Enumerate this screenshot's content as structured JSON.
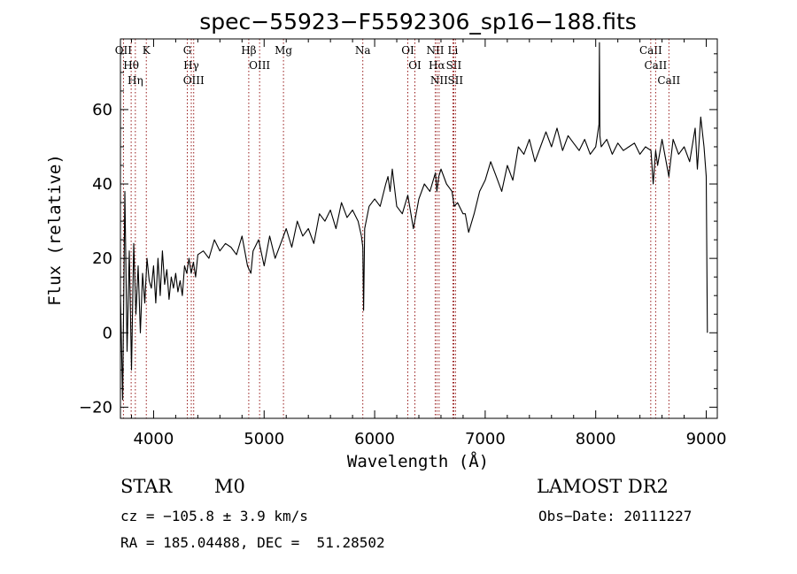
{
  "chart_data": {
    "type": "line",
    "title": "spec−55923−F5592306_sp16−188.fits",
    "xlabel": "Wavelength (Å)",
    "ylabel": "Flux (relative)",
    "xlim": [
      3700,
      9100
    ],
    "ylim": [
      -23,
      79
    ],
    "xticks": [
      4000,
      5000,
      6000,
      7000,
      8000,
      9000
    ],
    "yticks": [
      -20,
      0,
      20,
      40,
      60
    ],
    "ytick_labels": [
      "−20",
      "0",
      "20",
      "40",
      "60"
    ],
    "series": [
      {
        "name": "flux",
        "x": [
          3700,
          3720,
          3740,
          3760,
          3780,
          3800,
          3820,
          3840,
          3860,
          3880,
          3900,
          3920,
          3940,
          3960,
          3980,
          4000,
          4020,
          4040,
          4060,
          4080,
          4100,
          4120,
          4140,
          4160,
          4180,
          4200,
          4220,
          4240,
          4260,
          4280,
          4300,
          4320,
          4340,
          4360,
          4380,
          4400,
          4450,
          4500,
          4550,
          4600,
          4650,
          4700,
          4750,
          4800,
          4850,
          4880,
          4900,
          4950,
          5000,
          5050,
          5100,
          5150,
          5200,
          5250,
          5300,
          5350,
          5400,
          5450,
          5500,
          5550,
          5600,
          5650,
          5700,
          5750,
          5800,
          5850,
          5880,
          5893,
          5900,
          5910,
          5950,
          6000,
          6050,
          6100,
          6120,
          6140,
          6160,
          6200,
          6250,
          6300,
          6350,
          6400,
          6450,
          6500,
          6550,
          6563,
          6580,
          6600,
          6650,
          6700,
          6720,
          6750,
          6800,
          6820,
          6850,
          6900,
          6950,
          7000,
          7050,
          7100,
          7150,
          7200,
          7250,
          7300,
          7350,
          7400,
          7450,
          7500,
          7550,
          7600,
          7650,
          7700,
          7750,
          7800,
          7850,
          7900,
          7950,
          8000,
          8030,
          8034,
          8038,
          8050,
          8100,
          8150,
          8200,
          8250,
          8300,
          8350,
          8400,
          8450,
          8500,
          8520,
          8542,
          8560,
          8600,
          8662,
          8700,
          8750,
          8800,
          8850,
          8900,
          8920,
          8950,
          8980,
          9000,
          9010
        ],
        "values": [
          10,
          -18,
          38,
          -5,
          22,
          -10,
          24,
          5,
          18,
          0,
          16,
          8,
          20,
          14,
          12,
          18,
          8,
          20,
          10,
          22,
          13,
          17,
          9,
          15,
          12,
          16,
          11,
          14,
          10,
          18,
          16,
          20,
          16,
          19,
          15,
          21,
          22,
          20,
          25,
          22,
          24,
          23,
          21,
          26,
          18,
          16,
          22,
          25,
          18,
          26,
          20,
          24,
          28,
          23,
          30,
          26,
          28,
          24,
          32,
          30,
          33,
          28,
          35,
          31,
          33,
          30,
          26,
          23,
          6,
          28,
          34,
          36,
          34,
          40,
          42,
          38,
          44,
          34,
          32,
          37,
          28,
          36,
          40,
          38,
          43,
          38,
          42,
          44,
          40,
          38,
          34,
          35,
          32,
          32,
          27,
          32,
          38,
          41,
          46,
          42,
          38,
          45,
          41,
          50,
          48,
          52,
          46,
          50,
          54,
          50,
          55,
          49,
          53,
          51,
          49,
          52,
          48,
          50,
          56,
          78,
          53,
          50,
          52,
          48,
          51,
          49,
          50,
          51,
          48,
          50,
          49,
          40,
          49,
          45,
          52,
          42,
          52,
          48,
          50,
          46,
          55,
          44,
          58,
          50,
          42,
          0
        ]
      }
    ],
    "lines": [
      {
        "name": "OII",
        "wavelength": 3727
      },
      {
        "name": "Hθ",
        "wavelength": 3797
      },
      {
        "name": "Hη",
        "wavelength": 3835
      },
      {
        "name": "K",
        "wavelength": 3934
      },
      {
        "name": "G",
        "wavelength": 4305
      },
      {
        "name": "Hγ",
        "wavelength": 4341
      },
      {
        "name": "OIII",
        "wavelength": 4363
      },
      {
        "name": "Hβ",
        "wavelength": 4861
      },
      {
        "name": "OIII",
        "wavelength": 4959
      },
      {
        "name": "Mg",
        "wavelength": 5175
      },
      {
        "name": "Na",
        "wavelength": 5893
      },
      {
        "name": "OI",
        "wavelength": 6300
      },
      {
        "name": "OI",
        "wavelength": 6364
      },
      {
        "name": "NII",
        "wavelength": 6548
      },
      {
        "name": "Hα",
        "wavelength": 6563
      },
      {
        "name": "NII",
        "wavelength": 6583
      },
      {
        "name": "Li",
        "wavelength": 6708
      },
      {
        "name": "SII",
        "wavelength": 6716
      },
      {
        "name": "SII",
        "wavelength": 6731
      },
      {
        "name": "CaII",
        "wavelength": 8498
      },
      {
        "name": "CaII",
        "wavelength": 8542
      },
      {
        "name": "CaII",
        "wavelength": 8662
      }
    ]
  },
  "info": {
    "object_class": "STAR",
    "subclass": "M0",
    "survey": "LAMOST DR2",
    "redshift_line": "cz = −105.8 ± 3.9 km/s",
    "obs_date": "Obs−Date: 20111227",
    "coords": "RA = 185.04488, DEC =  51.28502"
  }
}
